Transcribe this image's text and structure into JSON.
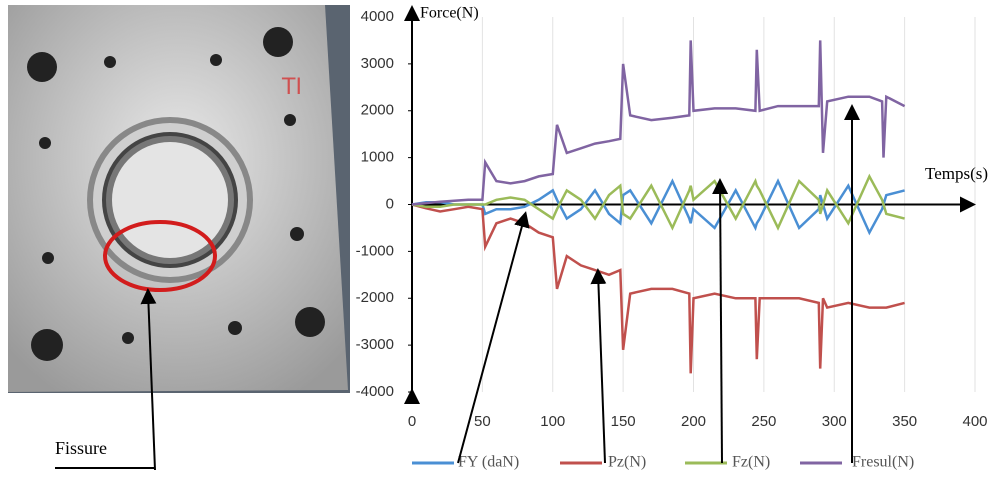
{
  "photo": {
    "marking": "TI",
    "annotation": "Fissure"
  },
  "chart_data": {
    "type": "line",
    "y_label": "Force(N)",
    "x_label": "Temps(s)",
    "x": [
      0,
      10,
      20,
      30,
      40,
      50,
      52,
      60,
      70,
      80,
      90,
      100,
      103,
      110,
      120,
      130,
      140,
      148,
      150,
      155,
      170,
      185,
      197,
      198,
      200,
      215,
      230,
      244,
      245,
      247,
      260,
      275,
      289,
      290,
      292,
      295,
      310,
      325,
      334,
      335,
      337,
      350
    ],
    "series": [
      {
        "name": "FY (daN)",
        "color": "#4a8fd4",
        "values": [
          0,
          50,
          50,
          0,
          0,
          0,
          -200,
          -100,
          -100,
          -50,
          100,
          300,
          100,
          -300,
          -100,
          300,
          -200,
          -400,
          200,
          300,
          -400,
          500,
          -300,
          -400,
          -100,
          -500,
          300,
          -500,
          -400,
          -300,
          500,
          -500,
          -100,
          200,
          0,
          -300,
          400,
          -600,
          -100,
          0,
          200,
          300
        ]
      },
      {
        "name": "Pz(N)",
        "color": "#c0504d",
        "values": [
          0,
          -80,
          -150,
          -100,
          -50,
          -100,
          -900,
          -400,
          -300,
          -400,
          -600,
          -700,
          -1800,
          -1100,
          -1300,
          -1400,
          -1500,
          -1400,
          -3100,
          -1900,
          -1800,
          -1800,
          -1900,
          -3600,
          -2000,
          -1900,
          -2000,
          -2000,
          -3300,
          -2000,
          -2000,
          -2000,
          -2100,
          -3500,
          -2000,
          -2200,
          -2100,
          -2200,
          -2200,
          -2200,
          -2200,
          -2100
        ]
      },
      {
        "name": "Fz(N)",
        "color": "#9bbb59",
        "values": [
          0,
          -50,
          -50,
          0,
          0,
          0,
          0,
          100,
          150,
          100,
          -100,
          -300,
          -100,
          300,
          100,
          -300,
          200,
          400,
          -200,
          -300,
          400,
          -500,
          300,
          400,
          100,
          500,
          -300,
          500,
          400,
          300,
          -500,
          500,
          100,
          -200,
          0,
          300,
          -400,
          600,
          100,
          0,
          -200,
          -300
        ]
      },
      {
        "name": "Fresul(N)",
        "color": "#8064a2",
        "values": [
          0,
          30,
          60,
          80,
          100,
          100,
          900,
          500,
          450,
          500,
          600,
          650,
          1700,
          1100,
          1200,
          1300,
          1350,
          1400,
          3000,
          1900,
          1800,
          1850,
          1900,
          3500,
          2000,
          2050,
          2050,
          2000,
          3300,
          2000,
          2100,
          2100,
          2100,
          3500,
          1100,
          2200,
          2300,
          2300,
          2200,
          1000,
          2300,
          2100
        ]
      }
    ],
    "xlim": [
      0,
      400
    ],
    "xticks": [
      0,
      50,
      100,
      150,
      200,
      250,
      300,
      350,
      400
    ],
    "ylim": [
      -4000,
      4000
    ],
    "yticks": [
      -4000,
      -3000,
      -2000,
      -1000,
      0,
      1000,
      2000,
      3000,
      4000
    ],
    "grid": true
  }
}
